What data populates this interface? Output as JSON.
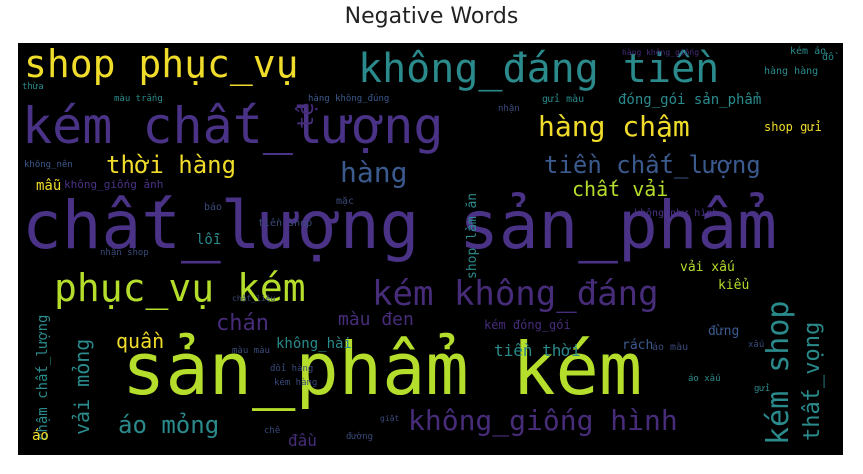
{
  "title": "Negative Words",
  "colors": {
    "purple": "#4a3286",
    "teal": "#2a8a8c",
    "green": "#7ed24f",
    "lime": "#b5dd2b",
    "yellow": "#f0dc2a",
    "blue": "#3b5a8e",
    "dark_purple": "#472c7a",
    "dim": "#3a4a7a"
  },
  "words": {
    "w01": "chất_lượng sản_phẩm",
    "w02": "sản_phẩm kém",
    "w03": "kém chất_lượng",
    "w04": "không_đáng tiền",
    "w05": "shop phục_vụ",
    "w06": "phục_vụ kém",
    "w07": "kém không_đáng",
    "w08": "hàng chậm",
    "w09": "tiền chất_lượng",
    "w10": "thời hàng",
    "w11": "hàng",
    "w12": "chất vải",
    "w13": "không_giống hình",
    "w14": "áo mỏng",
    "w15": "quần",
    "w16": "chán",
    "w17": "màu đen",
    "w18": "kém shop",
    "w19": "thất_vọng",
    "w20": "vải mỏng",
    "w21": "chậm chất_lượng",
    "w22": "shop làm ăn",
    "w23": "tiền thời",
    "w24": "không_hài",
    "w25": "đóng_gói sản_phẩm",
    "w26": "shop gửi",
    "w27": "tệ",
    "w28": "đầu",
    "w29": "lỗi",
    "w30": "mẫu",
    "w31": "không_giống ảnh",
    "w32": "kém đóng_gói",
    "w33": "rách",
    "w34": "vải xấu",
    "w35": "đừng",
    "w36": "kiểu",
    "w37": "gửi màu",
    "w38": "kém áo",
    "w39": "không_như hình",
    "w40": "màu trắng",
    "w41": "hàng không_đúng",
    "w42": "không_nên",
    "w43": "tiền shop",
    "w44": "nhận shop",
    "w45": "áo",
    "w46": "hàng hàng",
    "w47": "thừa",
    "w48": "báo",
    "w49": "nhận",
    "w50": "áo màu",
    "w51": "áo xấu",
    "w52": "đường",
    "w53": "chất_liệu",
    "w54": "đổi hàng",
    "w55": "kém hàng",
    "w56": "màu màu",
    "w57": "hàng không_giống",
    "w58": "mặc",
    "w59": "chê",
    "w60": "giặt",
    "w61": "gửi",
    "w62": "xấu",
    "w63": "đồ"
  }
}
